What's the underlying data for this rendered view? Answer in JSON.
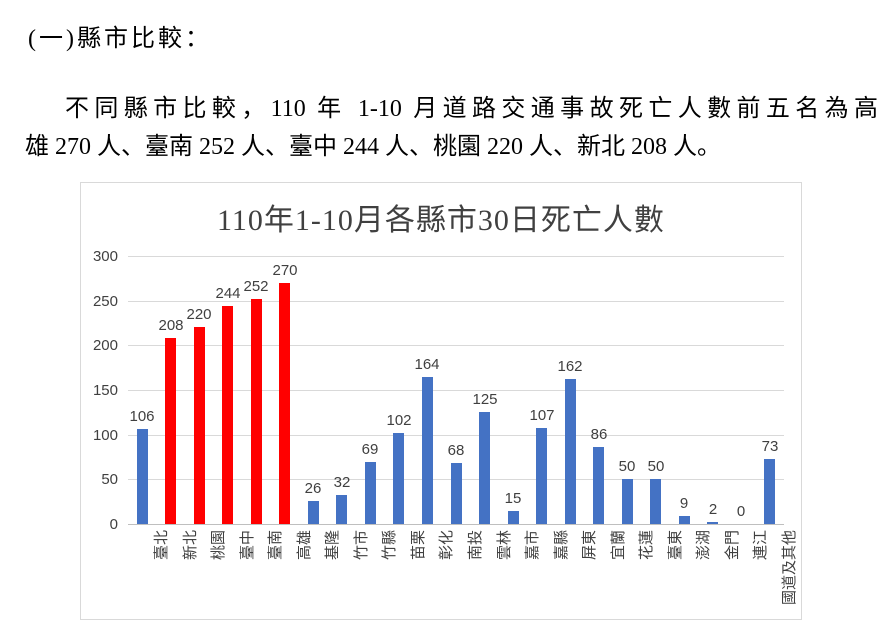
{
  "page": {
    "heading": "(一)縣市比較：",
    "paragraph_lines": [
      "不同縣市比較，110 年 1-10 月道路交通事故死亡人數前五名為高",
      "雄 270 人、臺南 252 人、臺中 244 人、桃園 220 人、新北 208 人。"
    ]
  },
  "chart_data": {
    "type": "bar",
    "title": "110年1-10月各縣市30日死亡人數",
    "categories": [
      "臺北",
      "新北",
      "桃園",
      "臺中",
      "臺南",
      "高雄",
      "基隆",
      "竹市",
      "竹縣",
      "苗栗",
      "彰化",
      "南投",
      "雲林",
      "嘉市",
      "嘉縣",
      "屏東",
      "宜蘭",
      "花蓮",
      "臺東",
      "澎湖",
      "金門",
      "連江",
      "國道及其他"
    ],
    "values": [
      106,
      208,
      220,
      244,
      252,
      270,
      26,
      32,
      69,
      102,
      164,
      68,
      125,
      15,
      107,
      162,
      86,
      50,
      50,
      9,
      2,
      0,
      73
    ],
    "highlighted_categories": [
      "新北",
      "桃園",
      "臺中",
      "臺南",
      "高雄"
    ],
    "bar_color_default": "#4472C4",
    "bar_color_highlight": "#FF0000",
    "ylim": [
      0,
      300
    ],
    "yticks": [
      0,
      50,
      100,
      150,
      200,
      250,
      300
    ],
    "grid": true,
    "data_labels": true,
    "xlabel": "",
    "ylabel": "",
    "gridline_color": "#D9D9D9",
    "axis_line_color": "#BFBFBF",
    "label_color": "#404040",
    "legend": "none"
  }
}
